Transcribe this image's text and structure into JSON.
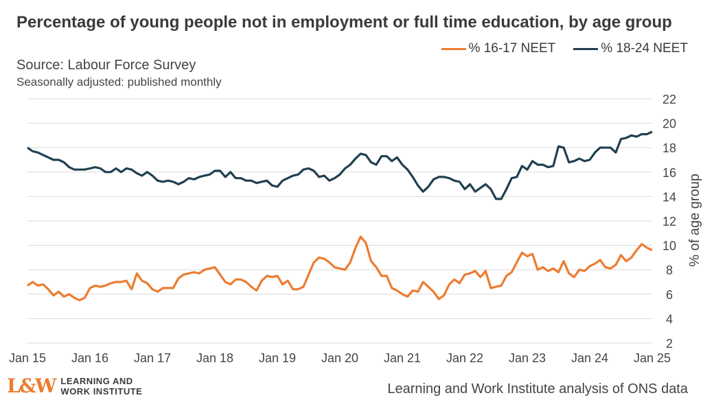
{
  "header": {
    "title": "Percentage of young people not in employment or full time education, by age group",
    "source": "Source: Labour Force Survey",
    "note": "Seasonally adjusted: published monthly"
  },
  "footer": {
    "logo_mark": "L&W",
    "logo_line1": "LEARNING AND",
    "logo_line2": "WORK INSTITUTE",
    "credit": "Learning and Work Institute analysis of ONS data"
  },
  "chart_data": {
    "type": "line",
    "ylabel": "% of age group",
    "ylim": [
      2,
      22
    ],
    "yticks": [
      2,
      4,
      6,
      8,
      10,
      12,
      14,
      16,
      18,
      20,
      22
    ],
    "xlim": [
      0,
      120
    ],
    "xticks": [
      {
        "x": 0,
        "label": "Jan 15"
      },
      {
        "x": 12,
        "label": "Jan 16"
      },
      {
        "x": 24,
        "label": "Jan 17"
      },
      {
        "x": 36,
        "label": "Jan 18"
      },
      {
        "x": 48,
        "label": "Jan 19"
      },
      {
        "x": 60,
        "label": "Jan 20"
      },
      {
        "x": 72,
        "label": "Jan 21"
      },
      {
        "x": 84,
        "label": "Jan 22"
      },
      {
        "x": 96,
        "label": "Jan 23"
      },
      {
        "x": 108,
        "label": "Jan 24"
      },
      {
        "x": 120,
        "label": "Jan 25"
      }
    ],
    "grid": true,
    "legend_position": "top-right",
    "y_axis_side": "right",
    "series": [
      {
        "name": "% 16-17 NEET",
        "color": "#ec7c30",
        "points": [
          [
            0,
            6.7
          ],
          [
            1,
            7.0
          ],
          [
            2,
            6.7
          ],
          [
            3,
            6.8
          ],
          [
            4,
            6.4
          ],
          [
            5,
            5.9
          ],
          [
            6,
            6.2
          ],
          [
            7,
            5.8
          ],
          [
            8,
            6.0
          ],
          [
            9,
            5.7
          ],
          [
            10,
            5.5
          ],
          [
            11,
            5.7
          ],
          [
            12,
            6.5
          ],
          [
            13,
            6.7
          ],
          [
            14,
            6.6
          ],
          [
            15,
            6.7
          ],
          [
            16,
            6.9
          ],
          [
            17,
            7.0
          ],
          [
            18,
            7.0
          ],
          [
            19,
            7.1
          ],
          [
            20,
            6.4
          ],
          [
            21,
            7.7
          ],
          [
            22,
            7.1
          ],
          [
            23,
            6.9
          ],
          [
            24,
            6.4
          ],
          [
            25,
            6.2
          ],
          [
            26,
            6.5
          ],
          [
            27,
            6.5
          ],
          [
            28,
            6.5
          ],
          [
            29,
            7.3
          ],
          [
            30,
            7.6
          ],
          [
            31,
            7.7
          ],
          [
            32,
            7.8
          ],
          [
            33,
            7.7
          ],
          [
            34,
            8.0
          ],
          [
            35,
            8.1
          ],
          [
            36,
            8.2
          ],
          [
            37,
            7.6
          ],
          [
            38,
            7.0
          ],
          [
            39,
            6.8
          ],
          [
            40,
            7.2
          ],
          [
            41,
            7.2
          ],
          [
            42,
            7.0
          ],
          [
            43,
            6.6
          ],
          [
            44,
            6.3
          ],
          [
            45,
            7.1
          ],
          [
            46,
            7.5
          ],
          [
            47,
            7.4
          ],
          [
            48,
            7.5
          ],
          [
            49,
            6.8
          ],
          [
            50,
            7.1
          ],
          [
            51,
            6.4
          ],
          [
            52,
            6.4
          ],
          [
            53,
            6.6
          ],
          [
            54,
            7.6
          ],
          [
            55,
            8.6
          ],
          [
            56,
            9.0
          ],
          [
            57,
            8.9
          ],
          [
            58,
            8.6
          ],
          [
            59,
            8.2
          ],
          [
            60,
            8.1
          ],
          [
            61,
            8.0
          ],
          [
            62,
            8.6
          ],
          [
            63,
            9.8
          ],
          [
            64,
            10.7
          ],
          [
            65,
            10.2
          ],
          [
            66,
            8.7
          ],
          [
            67,
            8.2
          ],
          [
            68,
            7.5
          ],
          [
            69,
            7.5
          ],
          [
            70,
            6.5
          ],
          [
            71,
            6.3
          ],
          [
            72,
            6.0
          ],
          [
            73,
            5.8
          ],
          [
            74,
            6.3
          ],
          [
            75,
            6.2
          ],
          [
            76,
            7.0
          ],
          [
            77,
            6.6
          ],
          [
            78,
            6.2
          ],
          [
            79,
            5.6
          ],
          [
            80,
            5.9
          ],
          [
            81,
            6.8
          ],
          [
            82,
            7.2
          ],
          [
            83,
            6.9
          ],
          [
            84,
            7.6
          ],
          [
            85,
            7.7
          ],
          [
            86,
            7.9
          ],
          [
            87,
            7.4
          ],
          [
            88,
            7.9
          ],
          [
            89,
            6.5
          ],
          [
            90,
            6.6
          ],
          [
            91,
            6.7
          ],
          [
            92,
            7.5
          ],
          [
            93,
            7.8
          ],
          [
            94,
            8.6
          ],
          [
            95,
            9.4
          ],
          [
            96,
            9.1
          ],
          [
            97,
            9.3
          ],
          [
            98,
            8.0
          ],
          [
            99,
            8.2
          ],
          [
            100,
            7.9
          ],
          [
            101,
            8.1
          ],
          [
            102,
            7.8
          ],
          [
            103,
            8.7
          ],
          [
            104,
            7.7
          ],
          [
            105,
            7.4
          ],
          [
            106,
            8.0
          ],
          [
            107,
            7.9
          ],
          [
            108,
            8.3
          ],
          [
            109,
            8.5
          ],
          [
            110,
            8.8
          ],
          [
            111,
            8.2
          ],
          [
            112,
            8.1
          ],
          [
            113,
            8.4
          ],
          [
            114,
            9.2
          ],
          [
            115,
            8.7
          ],
          [
            116,
            9.0
          ],
          [
            117,
            9.6
          ],
          [
            118,
            10.1
          ],
          [
            119,
            9.8
          ],
          [
            120,
            9.6
          ]
        ]
      },
      {
        "name": "% 18-24 NEET",
        "color": "#1f3f4f",
        "points": [
          [
            0,
            18.0
          ],
          [
            1,
            17.7
          ],
          [
            2,
            17.6
          ],
          [
            3,
            17.4
          ],
          [
            4,
            17.2
          ],
          [
            5,
            17.0
          ],
          [
            6,
            17.0
          ],
          [
            7,
            16.8
          ],
          [
            8,
            16.4
          ],
          [
            9,
            16.2
          ],
          [
            10,
            16.2
          ],
          [
            11,
            16.2
          ],
          [
            12,
            16.3
          ],
          [
            13,
            16.4
          ],
          [
            14,
            16.3
          ],
          [
            15,
            16.0
          ],
          [
            16,
            16.0
          ],
          [
            17,
            16.3
          ],
          [
            18,
            16.0
          ],
          [
            19,
            16.3
          ],
          [
            20,
            16.2
          ],
          [
            21,
            15.9
          ],
          [
            22,
            15.7
          ],
          [
            23,
            16.0
          ],
          [
            24,
            15.7
          ],
          [
            25,
            15.3
          ],
          [
            26,
            15.2
          ],
          [
            27,
            15.3
          ],
          [
            28,
            15.2
          ],
          [
            29,
            15.0
          ],
          [
            30,
            15.2
          ],
          [
            31,
            15.5
          ],
          [
            32,
            15.4
          ],
          [
            33,
            15.6
          ],
          [
            34,
            15.7
          ],
          [
            35,
            15.8
          ],
          [
            36,
            16.1
          ],
          [
            37,
            16.1
          ],
          [
            38,
            15.6
          ],
          [
            39,
            16.0
          ],
          [
            40,
            15.5
          ],
          [
            41,
            15.5
          ],
          [
            42,
            15.3
          ],
          [
            43,
            15.3
          ],
          [
            44,
            15.1
          ],
          [
            45,
            15.2
          ],
          [
            46,
            15.3
          ],
          [
            47,
            14.9
          ],
          [
            48,
            14.8
          ],
          [
            49,
            15.3
          ],
          [
            50,
            15.5
          ],
          [
            51,
            15.7
          ],
          [
            52,
            15.8
          ],
          [
            53,
            16.2
          ],
          [
            54,
            16.3
          ],
          [
            55,
            16.1
          ],
          [
            56,
            15.6
          ],
          [
            57,
            15.7
          ],
          [
            58,
            15.3
          ],
          [
            59,
            15.5
          ],
          [
            60,
            15.8
          ],
          [
            61,
            16.3
          ],
          [
            62,
            16.6
          ],
          [
            63,
            17.1
          ],
          [
            64,
            17.5
          ],
          [
            65,
            17.4
          ],
          [
            66,
            16.8
          ],
          [
            67,
            16.6
          ],
          [
            68,
            17.3
          ],
          [
            69,
            17.3
          ],
          [
            70,
            16.9
          ],
          [
            71,
            17.2
          ],
          [
            72,
            16.6
          ],
          [
            73,
            16.2
          ],
          [
            74,
            15.6
          ],
          [
            75,
            14.9
          ],
          [
            76,
            14.4
          ],
          [
            77,
            14.8
          ],
          [
            78,
            15.4
          ],
          [
            79,
            15.6
          ],
          [
            80,
            15.6
          ],
          [
            81,
            15.5
          ],
          [
            82,
            15.3
          ],
          [
            83,
            15.2
          ],
          [
            84,
            14.6
          ],
          [
            85,
            15.0
          ],
          [
            86,
            14.4
          ],
          [
            87,
            14.7
          ],
          [
            88,
            15.0
          ],
          [
            89,
            14.6
          ],
          [
            90,
            13.8
          ],
          [
            91,
            13.8
          ],
          [
            92,
            14.6
          ],
          [
            93,
            15.5
          ],
          [
            94,
            15.6
          ],
          [
            95,
            16.5
          ],
          [
            96,
            16.2
          ],
          [
            97,
            16.9
          ],
          [
            98,
            16.6
          ],
          [
            99,
            16.6
          ],
          [
            100,
            16.4
          ],
          [
            101,
            16.5
          ],
          [
            102,
            18.1
          ],
          [
            103,
            18.0
          ],
          [
            104,
            16.8
          ],
          [
            105,
            16.9
          ],
          [
            106,
            17.1
          ],
          [
            107,
            16.9
          ],
          [
            108,
            17.0
          ],
          [
            109,
            17.6
          ],
          [
            110,
            18.0
          ],
          [
            111,
            18.0
          ],
          [
            112,
            18.0
          ],
          [
            113,
            17.6
          ],
          [
            114,
            18.7
          ],
          [
            115,
            18.8
          ],
          [
            116,
            19.0
          ],
          [
            117,
            18.9
          ],
          [
            118,
            19.1
          ],
          [
            119,
            19.1
          ],
          [
            120,
            19.3
          ]
        ]
      }
    ]
  }
}
